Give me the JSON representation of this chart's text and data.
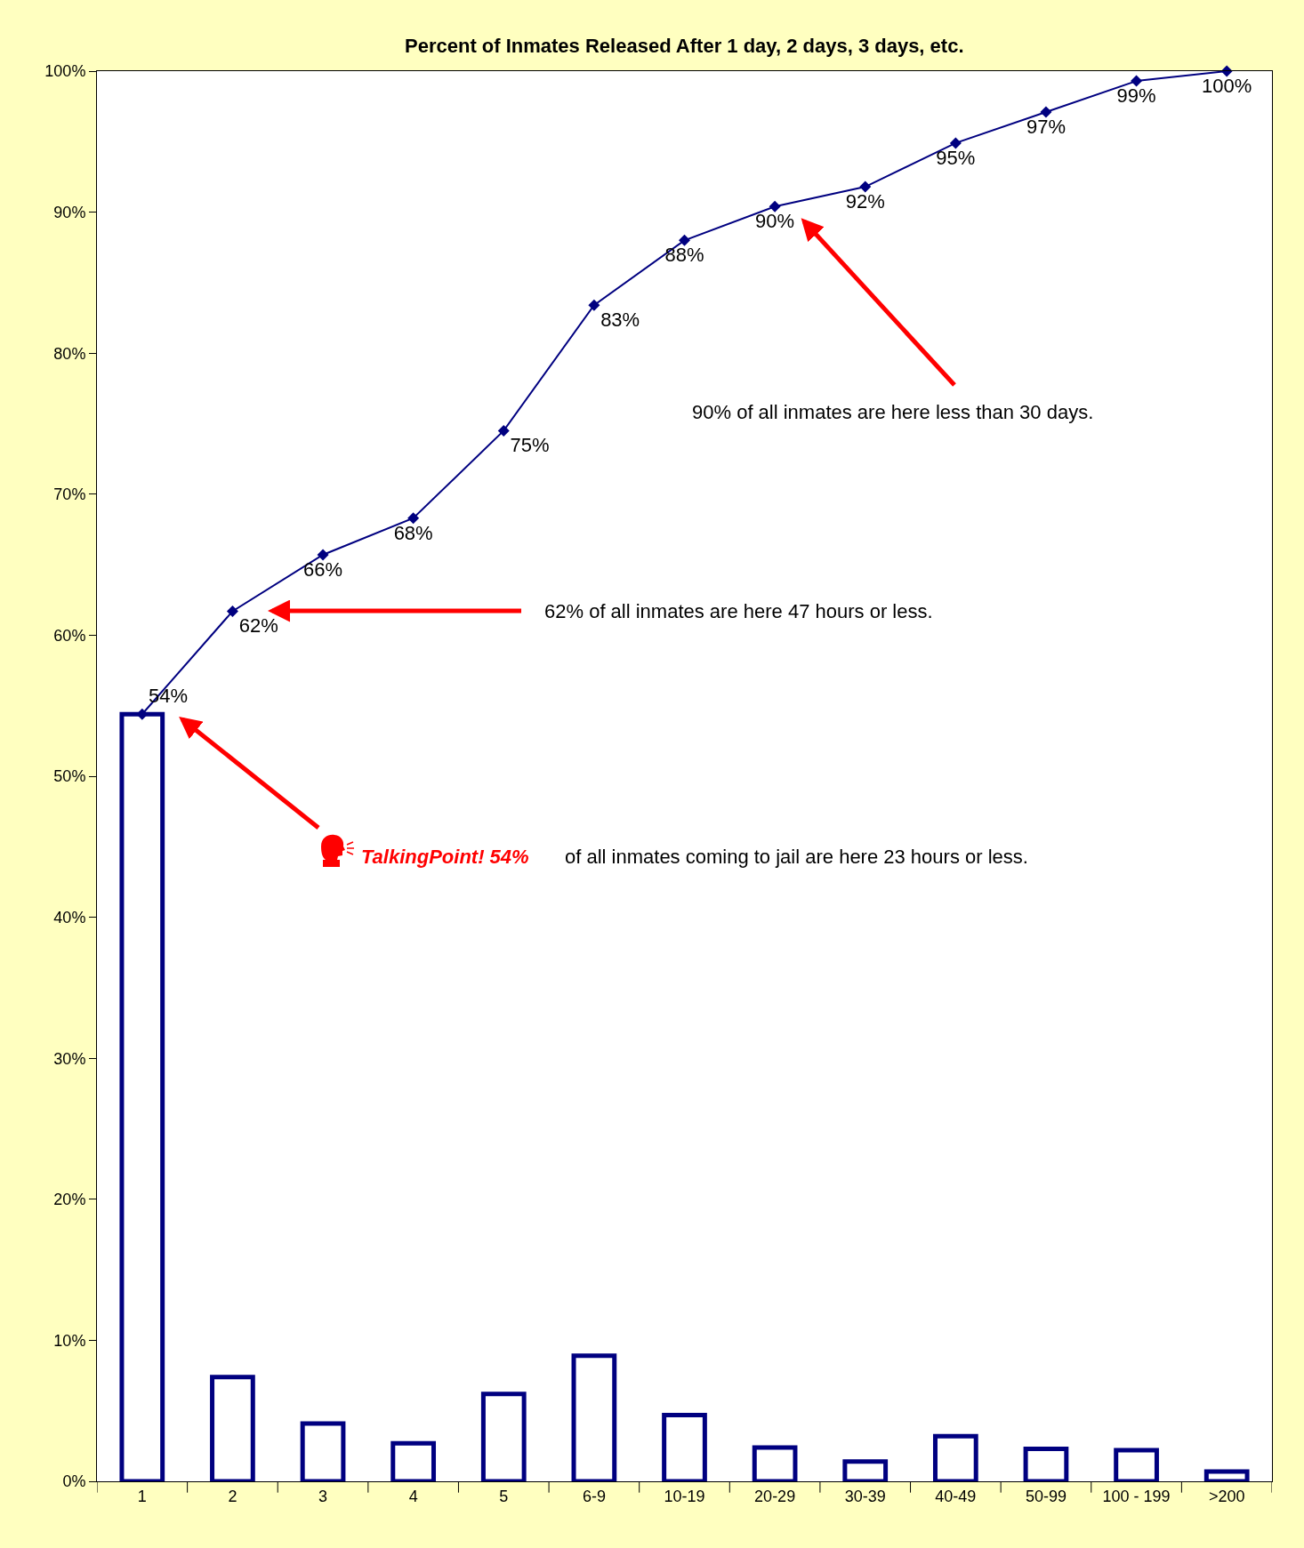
{
  "chart_data": {
    "type": "bar",
    "title": "Percent of Inmates Released After 1 day, 2 days, 3 days, etc.",
    "categories": [
      "1",
      "2",
      "3",
      "4",
      "5",
      "6-9",
      "10-19",
      "20-29",
      "30-39",
      "40-49",
      "50-99",
      "100 - 199",
      ">200"
    ],
    "series": [
      {
        "color": "#000080",
        "values": [
          54.4,
          7.4,
          4.1,
          2.7,
          6.2,
          8.9,
          4.7,
          2.4,
          1.4,
          3.2,
          2.3,
          2.2,
          0.7
        ]
      },
      {
        "type": "line",
        "color": "#000080",
        "marker": "diamond",
        "values": [
          54.4,
          61.7,
          65.7,
          68.3,
          74.5,
          83.4,
          88.0,
          90.4,
          91.8,
          94.9,
          97.1,
          99.3,
          100
        ],
        "value_labels": [
          "54%",
          "62%",
          "66%",
          "68%",
          "75%",
          "83%",
          "88%",
          "90%",
          "92%",
          "95%",
          "97%",
          "99%",
          "100%"
        ]
      }
    ],
    "ylim": [
      0,
      100
    ],
    "yticks": [
      {
        "value": 0,
        "label": "0%"
      },
      {
        "value": 10,
        "label": "10%"
      },
      {
        "value": 20,
        "label": "20%"
      },
      {
        "value": 30,
        "label": "30%"
      },
      {
        "value": 40,
        "label": "40%"
      },
      {
        "value": 50,
        "label": "50%"
      },
      {
        "value": 60,
        "label": "60%"
      },
      {
        "value": 70,
        "label": "70%"
      },
      {
        "value": 80,
        "label": "80%"
      },
      {
        "value": 90,
        "label": "90%"
      },
      {
        "value": 100,
        "label": "100%"
      }
    ],
    "grid": false,
    "annotations": [
      "62% of all inmates are here 47 hours or less.",
      "90% of all inmates are here less than 30 days.",
      "TalkingPoint! 54%",
      "of all inmates coming to jail are here 23 hours or less."
    ]
  }
}
